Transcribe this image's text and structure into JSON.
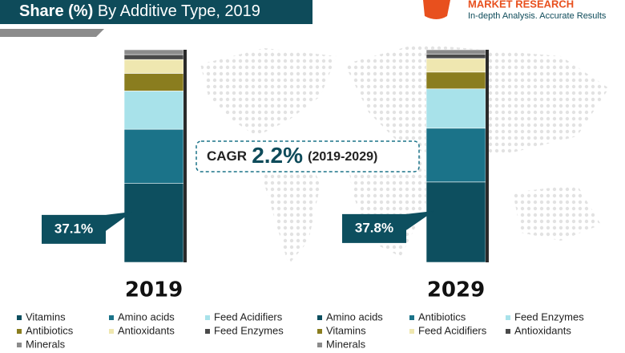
{
  "header": {
    "title_bold": "Share (%)",
    "title_rest": "By Additive Type, 2019"
  },
  "logo": {
    "name": "MARKET RESEARCH",
    "tagline": "In-depth Analysis. Accurate Results"
  },
  "annotation": {
    "label": "CAGR",
    "value": "2.2%",
    "period": "(2019-2029)"
  },
  "chart_data": [
    {
      "type": "stacked-bar",
      "title": "2019",
      "series": [
        {
          "name": "Vitamins",
          "color": "#0d4f5f",
          "values": [
            37.1
          ],
          "value_labels": [
            "37.1%"
          ]
        },
        {
          "name": "Amino acids",
          "color": "#1b7389",
          "values": [
            25.5
          ]
        },
        {
          "name": "Feed Acidifiers",
          "color": "#a8e2ea",
          "values": [
            18
          ]
        },
        {
          "name": "Antibiotics",
          "color": "#8a7d1f",
          "values": [
            8.3
          ]
        },
        {
          "name": "Antioxidants",
          "color": "#efe7b0",
          "values": [
            6.5
          ]
        },
        {
          "name": "Feed Enzymes",
          "color": "#4a4a4a",
          "values": [
            2.3
          ]
        },
        {
          "name": "Minerals",
          "color": "#8c8c8c",
          "values": [
            2.3
          ]
        }
      ]
    },
    {
      "type": "stacked-bar",
      "title": "2029",
      "series": [
        {
          "name": "Amino acids",
          "color": "#0d4f5f",
          "values": [
            37.8
          ],
          "value_labels": [
            "37.8%"
          ]
        },
        {
          "name": "Antibiotics",
          "color": "#1b7389",
          "values": [
            25.3
          ]
        },
        {
          "name": "Feed Enzymes",
          "color": "#a8e2ea",
          "values": [
            18.5
          ]
        },
        {
          "name": "Vitamins",
          "color": "#8a7d1f",
          "values": [
            7.9
          ]
        },
        {
          "name": "Feed Acidifiers",
          "color": "#efe7b0",
          "values": [
            6.4
          ]
        },
        {
          "name": "Antioxidants",
          "color": "#4a4a4a",
          "values": [
            2.1
          ]
        },
        {
          "name": "Minerals",
          "color": "#8c8c8c",
          "values": [
            2
          ]
        }
      ]
    }
  ]
}
